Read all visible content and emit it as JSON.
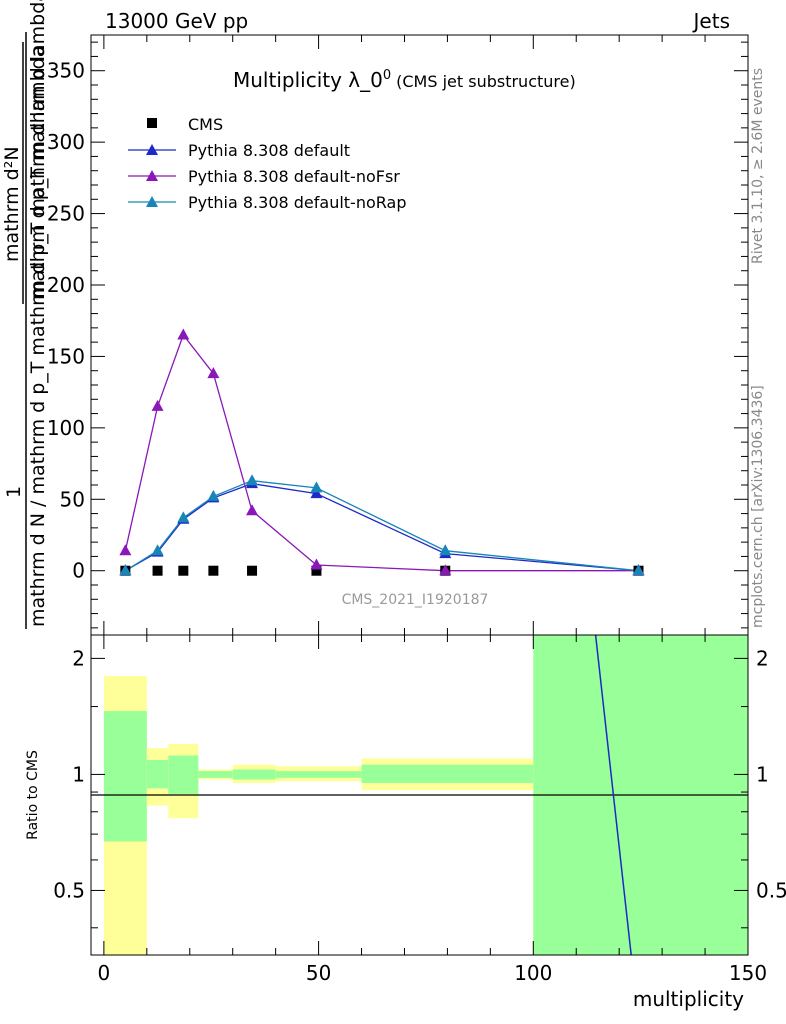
{
  "header": {
    "left": "13000 GeV pp",
    "right": "Jets"
  },
  "side_text": {
    "rivet": "Rivet 3.1.10, ≥ 2.6M events",
    "mcplots": "mcplots.cern.ch [arXiv:1306.3436]"
  },
  "chart_data": [
    {
      "type": "line",
      "title_main": "Multiplicity λ_0",
      "title_sup": "0",
      "title_paren": "(CMS jet substructure)",
      "ylabel_lines": [
        "1",
        "mathrm d N / mathrm d p_T mathrm d p_T mathrm d lambda",
        "mathrm d²N",
        "mathrm d p_T mathrm d lambda"
      ],
      "watermark": "CMS_2021_I1920187",
      "xlim": [
        -3,
        150
      ],
      "ylim": [
        -45,
        375
      ],
      "yticks": [
        0,
        50,
        100,
        150,
        200,
        250,
        300,
        350
      ],
      "yticklabels": [
        "0",
        "50",
        "100",
        "150",
        "200",
        "250",
        "300",
        "350"
      ],
      "legend_position": "top-left",
      "series": [
        {
          "name": "CMS",
          "marker": "square",
          "color": "#000000",
          "x": [
            5,
            12.5,
            18.5,
            25.5,
            34.5,
            49.5,
            79.5,
            124.5
          ],
          "y": [
            0,
            0,
            0,
            0,
            0,
            0,
            0,
            0
          ]
        },
        {
          "name": "Pythia 8.308 default",
          "marker": "triangle",
          "color": "#1f29c8",
          "x": [
            5,
            12.5,
            18.5,
            25.5,
            34.5,
            49.5,
            79.5,
            124.5
          ],
          "y": [
            0,
            13,
            36,
            51,
            61,
            54,
            12,
            0
          ]
        },
        {
          "name": "Pythia 8.308 default-noFsr",
          "marker": "triangle",
          "color": "#8a17b8",
          "x": [
            5,
            12.5,
            18.5,
            25.5,
            34.5,
            49.5,
            79.5,
            124.5
          ],
          "y": [
            14,
            115,
            165,
            138,
            42,
            4,
            0,
            0
          ]
        },
        {
          "name": "Pythia 8.308 default-noRap",
          "marker": "triangle",
          "color": "#1686b8",
          "x": [
            5,
            12.5,
            18.5,
            25.5,
            34.5,
            49.5,
            79.5,
            124.5
          ],
          "y": [
            0,
            14,
            37,
            52,
            63,
            58,
            14,
            0
          ]
        }
      ]
    },
    {
      "type": "area",
      "ylabel": "Ratio to CMS",
      "xlabel": "multiplicity",
      "xlim": [
        -3,
        150
      ],
      "ylim": [
        0.34,
        2.3
      ],
      "xticks": [
        0,
        50,
        100,
        150
      ],
      "xticklabels": [
        "0",
        "50",
        "100",
        "150"
      ],
      "yticks": [
        0.5,
        1,
        2
      ],
      "yticklabels": [
        "0.5",
        "1",
        "2"
      ],
      "reference_line": 1,
      "bins": [
        {
          "x0": 0,
          "x1": 10,
          "yellow": [
            0.34,
            1.8
          ],
          "green": [
            0.67,
            1.46
          ]
        },
        {
          "x0": 10,
          "x1": 15,
          "yellow": [
            0.83,
            1.17
          ],
          "green": [
            0.92,
            1.09
          ]
        },
        {
          "x0": 15,
          "x1": 22,
          "yellow": [
            0.77,
            1.2
          ],
          "green": [
            0.89,
            1.12
          ]
        },
        {
          "x0": 22,
          "x1": 30,
          "yellow": [
            0.97,
            1.03
          ],
          "green": [
            0.98,
            1.02
          ]
        },
        {
          "x0": 30,
          "x1": 40,
          "yellow": [
            0.95,
            1.06
          ],
          "green": [
            0.97,
            1.03
          ]
        },
        {
          "x0": 40,
          "x1": 60,
          "yellow": [
            0.96,
            1.05
          ],
          "green": [
            0.98,
            1.02
          ]
        },
        {
          "x0": 60,
          "x1": 100,
          "yellow": [
            0.91,
            1.1
          ],
          "green": [
            0.95,
            1.06
          ]
        },
        {
          "x0": 100,
          "x1": 150,
          "yellow": [
            0.34,
            2.3
          ],
          "green": [
            0.34,
            2.3
          ]
        }
      ],
      "series": [
        {
          "name": "Pythia 8.308 default",
          "color": "#1f29c8",
          "x": [
            114.5,
            122.8
          ],
          "y": [
            2.3,
            0.34
          ]
        }
      ]
    }
  ]
}
